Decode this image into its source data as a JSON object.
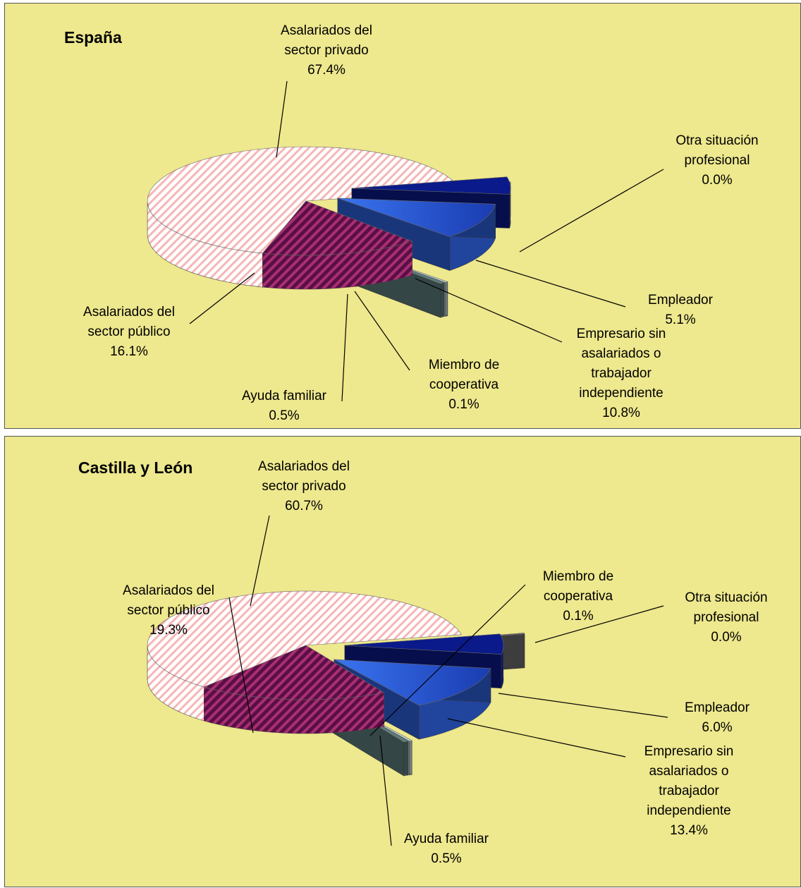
{
  "colors": {
    "background": "#EEE88E",
    "privado": "#F6B6B6",
    "publico": "#7A1457",
    "ayuda": "#5E7F7D",
    "cooperativa": "#CFE9E6",
    "empresario": "#2F63E0",
    "empleador": "#0A1A8A",
    "otra": "#6E6E6E"
  },
  "chart_data": [
    {
      "type": "pie",
      "title": "España",
      "slices": [
        {
          "key": "privado",
          "label": [
            "Asalariados del",
            "sector privado"
          ],
          "value_text": "67.4%",
          "value": 67.4
        },
        {
          "key": "publico",
          "label": [
            "Asalariados del",
            "sector público"
          ],
          "value_text": "16.1%",
          "value": 16.1
        },
        {
          "key": "ayuda",
          "label": [
            "Ayuda familiar"
          ],
          "value_text": "0.5%",
          "value": 0.5
        },
        {
          "key": "cooperativa",
          "label": [
            "Miembro de",
            "cooperativa"
          ],
          "value_text": "0.1%",
          "value": 0.1
        },
        {
          "key": "empresario",
          "label": [
            "Empresario sin",
            "asalariados o",
            "trabajador",
            "independiente"
          ],
          "value_text": "10.8%",
          "value": 10.8
        },
        {
          "key": "empleador",
          "label": [
            "Empleador"
          ],
          "value_text": "5.1%",
          "value": 5.1
        },
        {
          "key": "otra",
          "label": [
            "Otra situación",
            "profesional"
          ],
          "value_text": "0.0%",
          "value": 0.0
        }
      ]
    },
    {
      "type": "pie",
      "title": "Castilla y León",
      "slices": [
        {
          "key": "privado",
          "label": [
            "Asalariados del",
            "sector privado"
          ],
          "value_text": "60.7%",
          "value": 60.7
        },
        {
          "key": "publico",
          "label": [
            "Asalariados del",
            "sector público"
          ],
          "value_text": "19.3%",
          "value": 19.3
        },
        {
          "key": "ayuda",
          "label": [
            "Ayuda familiar"
          ],
          "value_text": "0.5%",
          "value": 0.5
        },
        {
          "key": "cooperativa",
          "label": [
            "Miembro de",
            "cooperativa"
          ],
          "value_text": "0.1%",
          "value": 0.1
        },
        {
          "key": "empresario",
          "label": [
            "Empresario sin",
            "asalariados o",
            "trabajador",
            "independiente"
          ],
          "value_text": "13.4%",
          "value": 13.4
        },
        {
          "key": "empleador",
          "label": [
            "Empleador"
          ],
          "value_text": "6.0%",
          "value": 6.0
        },
        {
          "key": "otra",
          "label": [
            "Otra situación",
            "profesional"
          ],
          "value_text": "0.0%",
          "value": 0.0
        }
      ]
    }
  ]
}
